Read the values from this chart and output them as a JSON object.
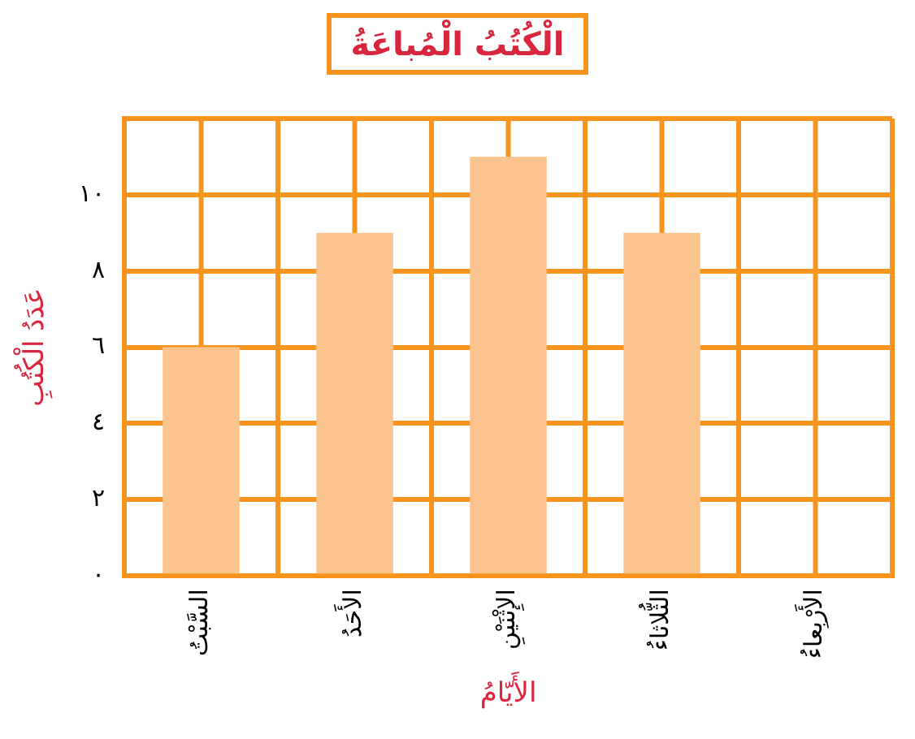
{
  "chart_data": {
    "type": "bar",
    "title": "الْكُتُبُ الْمُباعَةُ",
    "xlabel": "الأَيّامُ",
    "ylabel": "عَدَدُ الْكُتُبِ",
    "categories": [
      "السَّبْتُ",
      "الأَحَدُ",
      "الإِثْنَيْنِ",
      "الثُّلاثاءُ",
      "الأَرْبِعاءُ"
    ],
    "values": [
      6,
      9,
      11,
      9,
      null
    ],
    "color": "#fbc38d",
    "ylim": [
      0,
      12
    ],
    "yticks": [
      {
        "value": 0,
        "label": "٠"
      },
      {
        "value": 2,
        "label": "٢"
      },
      {
        "value": 4,
        "label": "٤"
      },
      {
        "value": 6,
        "label": "٦"
      },
      {
        "value": 8,
        "label": "٨"
      },
      {
        "value": 10,
        "label": "١٠"
      },
      {
        "value": 12,
        "label": null
      }
    ],
    "grid": true,
    "legend": false
  }
}
